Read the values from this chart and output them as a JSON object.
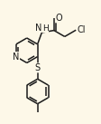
{
  "bg_color": "#fdf8e8",
  "bond_color": "#1a1a1a",
  "line_width": 1.1,
  "font_size": 7.0,
  "figsize": [
    1.13,
    1.37
  ],
  "dpi": 100,
  "xlim": [
    0.02,
    0.98
  ],
  "ylim": [
    0.05,
    1.0
  ]
}
